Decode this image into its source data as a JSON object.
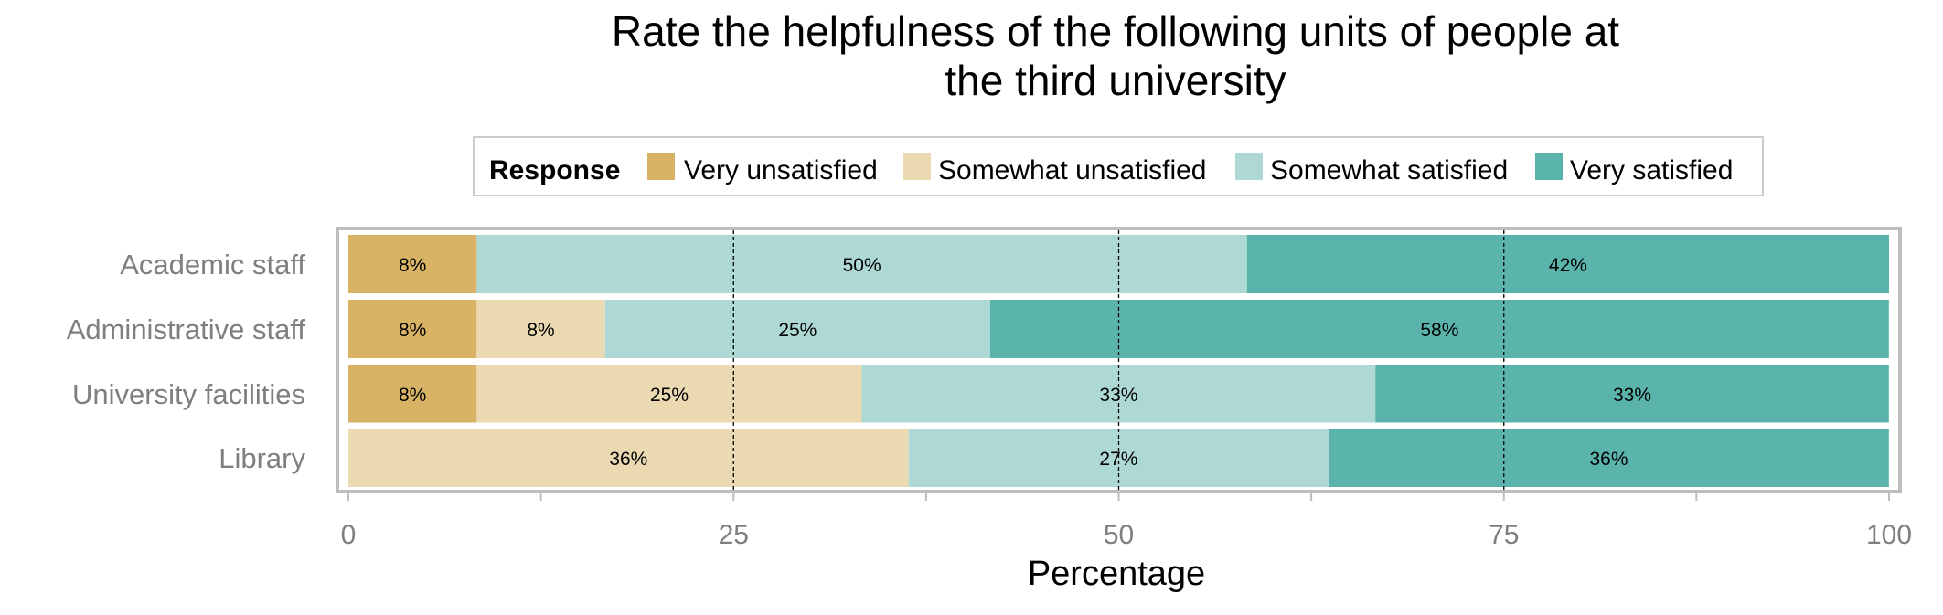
{
  "chart_data": {
    "type": "bar",
    "orientation": "horizontal",
    "stacked": true,
    "title_lines": [
      "Rate the helpfulness of the following units of people at",
      "the third university"
    ],
    "xlabel": "Percentage",
    "ylabel": "",
    "xlim": [
      0,
      100
    ],
    "x_ticks": [
      "0",
      "25",
      "50",
      "75",
      "100"
    ],
    "reference_lines": [
      25,
      50,
      75
    ],
    "legend": {
      "title": "Response",
      "placement": "top"
    },
    "categories": [
      "Academic staff",
      "Administrative staff",
      "University facilities",
      "Library"
    ],
    "series": [
      {
        "name": "Very unsatisfied",
        "color": "#D8B365",
        "values": [
          8.33,
          8.33,
          8.33,
          0
        ],
        "labels": [
          "8%",
          "8%",
          "8%",
          ""
        ]
      },
      {
        "name": "Somewhat unsatisfied",
        "color": "#EBD9B2",
        "values": [
          0,
          8.33,
          25,
          36.36
        ],
        "labels": [
          "",
          "8%",
          "25%",
          "36%"
        ]
      },
      {
        "name": "Somewhat satisfied",
        "color": "#ADD8D4",
        "values": [
          50,
          25,
          33.33,
          27.27
        ],
        "labels": [
          "50%",
          "25%",
          "33%",
          "27%"
        ]
      },
      {
        "name": "Very satisfied",
        "color": "#5AB4AC",
        "values": [
          41.67,
          58.33,
          33.33,
          36.36
        ],
        "labels": [
          "42%",
          "58%",
          "33%",
          "36%"
        ]
      }
    ]
  }
}
